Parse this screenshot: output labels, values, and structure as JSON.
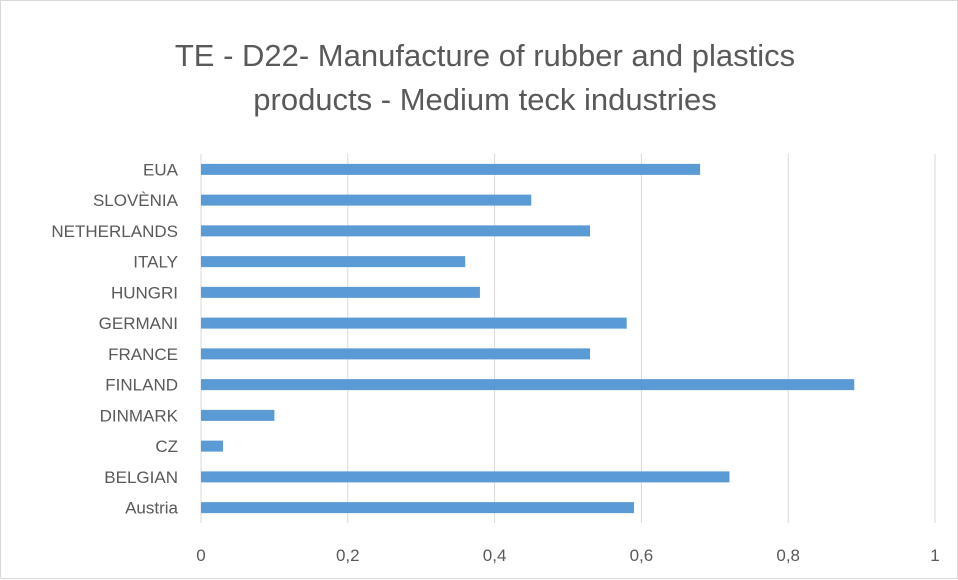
{
  "chart_data": {
    "type": "bar",
    "orientation": "horizontal",
    "title_lines": [
      "TE -  D22- Manufacture of rubber and plastics",
      "products - Medium  teck industries"
    ],
    "categories": [
      "EUA",
      "SLOVÈNIA",
      "NETHERLANDS",
      "ITALY",
      "HUNGRI",
      "GERMANI",
      "FRANCE",
      "FINLAND",
      "DINMARK",
      "CZ",
      "BELGIAN",
      "Austria"
    ],
    "values": [
      0.68,
      0.45,
      0.53,
      0.36,
      0.38,
      0.58,
      0.53,
      0.89,
      0.1,
      0.03,
      0.72,
      0.59
    ],
    "xlim": [
      0,
      1
    ],
    "x_ticks": [
      0,
      0.2,
      0.4,
      0.6,
      0.8,
      1
    ],
    "x_tick_labels": [
      "0",
      "0,2",
      "0,4",
      "0,6",
      "0,8",
      "1"
    ],
    "grid": "vertical",
    "legend": "none",
    "bar_color": "#5b9bd5",
    "grid_color": "#d9d9d9"
  }
}
